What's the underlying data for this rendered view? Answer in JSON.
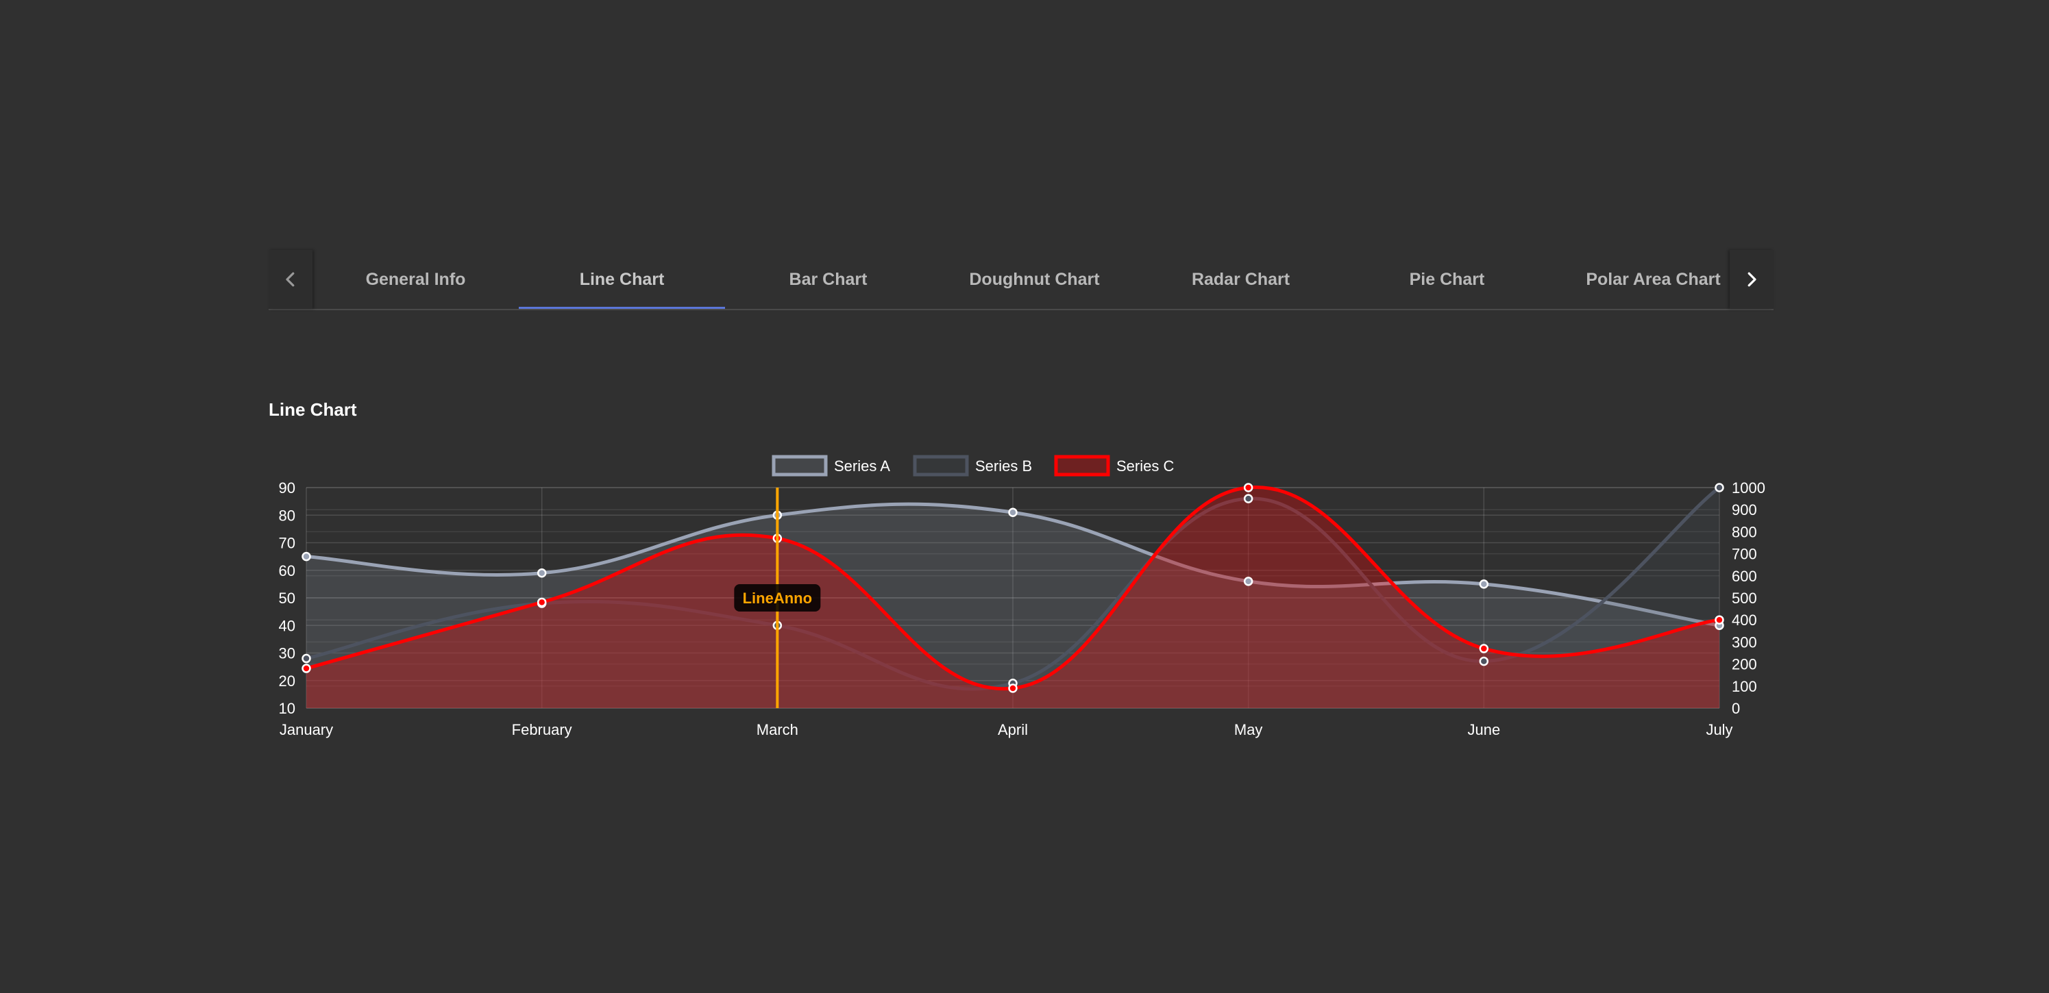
{
  "tabs": {
    "items": [
      "General Info",
      "Line Chart",
      "Bar Chart",
      "Doughnut Chart",
      "Radar Chart",
      "Pie Chart",
      "Polar Area Chart"
    ],
    "active_index": 1,
    "prev_icon": "chevron-left-icon",
    "next_icon": "chevron-right-icon"
  },
  "section": {
    "title": "Line Chart"
  },
  "chart_data": {
    "type": "line",
    "categories": [
      "January",
      "February",
      "March",
      "April",
      "May",
      "June",
      "July"
    ],
    "y_left": {
      "ticks": [
        "90",
        "80",
        "70",
        "60",
        "50",
        "40",
        "30",
        "20",
        "10"
      ],
      "ylim": [
        10,
        90
      ]
    },
    "y_right": {
      "ticks": [
        "1000",
        "900",
        "800",
        "700",
        "600",
        "500",
        "400",
        "300",
        "200",
        "100",
        "0"
      ],
      "ylim": [
        0,
        1000
      ]
    },
    "grid": true,
    "legend_position": "top",
    "series": [
      {
        "name": "Series A",
        "axis": "left",
        "values": [
          65,
          59,
          80,
          81,
          56,
          55,
          40
        ],
        "color": "#9aa3b5",
        "fill": "rgba(148,159,177,0.2)"
      },
      {
        "name": "Series B",
        "axis": "left",
        "values": [
          28,
          48,
          40,
          19,
          86,
          27,
          90
        ],
        "color": "#4d5360",
        "fill": "rgba(77,83,96,0.2)"
      },
      {
        "name": "Series C",
        "axis": "right",
        "values": [
          180,
          480,
          770,
          90,
          1000,
          270,
          400
        ],
        "color": "#ff0000",
        "fill": "rgba(255,0,0,0.3)"
      }
    ],
    "annotation": {
      "type": "vertical-line",
      "x": "March",
      "label": "LineAnno",
      "color": "#ffa500"
    }
  }
}
